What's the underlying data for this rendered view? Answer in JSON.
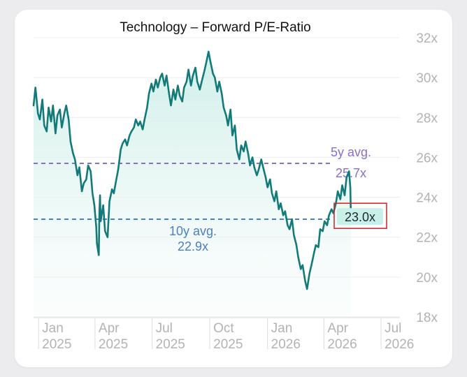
{
  "chart_data": {
    "type": "line",
    "title": "Technology – Forward P/E-Ratio",
    "xlabel": "",
    "ylabel": "",
    "ylim": [
      18,
      32
    ],
    "y_ticks": [
      "32x",
      "30x",
      "28x",
      "26x",
      "24x",
      "22x",
      "20x",
      "18x"
    ],
    "y_tick_values": [
      32,
      30,
      28,
      26,
      24,
      22,
      20,
      18
    ],
    "x_ticks": [
      {
        "month": "Jan",
        "year": "2025"
      },
      {
        "month": "Apr",
        "year": "2025"
      },
      {
        "month": "Jul",
        "year": "2025"
      },
      {
        "month": "Oct",
        "year": "2025"
      },
      {
        "month": "Jan",
        "year": "2026"
      },
      {
        "month": "Apr",
        "year": "2026"
      },
      {
        "month": "Jul",
        "year": "2026"
      }
    ],
    "x_tick_dates": [
      "2025-01-01",
      "2025-04-01",
      "2025-07-01",
      "2025-10-01",
      "2026-01-01",
      "2026-04-01",
      "2026-07-01"
    ],
    "xlim": [
      "2024-12-24",
      "2026-07-31"
    ],
    "grid": true,
    "colors": {
      "line": "#137a7a",
      "fill": "#d8f3ee",
      "avg5": "#8a6fc8",
      "avg10": "#4a7fc4",
      "last_box_border": "#cc2222",
      "last_box_fill": "#c9f0e8"
    },
    "reference_lines": [
      {
        "name": "5y avg.",
        "value": 25.7,
        "label_line1": "5y avg.",
        "label_line2": "25.7x"
      },
      {
        "name": "10y avg.",
        "value": 22.9,
        "label_line1": "10y avg.",
        "label_line2": "22.9x"
      }
    ],
    "last_value": {
      "value": 23.0,
      "label": "23.0x"
    },
    "series": [
      {
        "points": [
          [
            "2024-12-24",
            28.6
          ],
          [
            "2024-12-27",
            29.5
          ],
          [
            "2024-12-31",
            28.2
          ],
          [
            "2025-01-03",
            27.9
          ],
          [
            "2025-01-07",
            28.9
          ],
          [
            "2025-01-10",
            27.6
          ],
          [
            "2025-01-14",
            27.3
          ],
          [
            "2025-01-17",
            28.5
          ],
          [
            "2025-01-21",
            27.8
          ],
          [
            "2025-01-24",
            28.6
          ],
          [
            "2025-01-28",
            27.2
          ],
          [
            "2025-01-31",
            28.1
          ],
          [
            "2025-02-04",
            28.4
          ],
          [
            "2025-02-07",
            27.5
          ],
          [
            "2025-02-11",
            28.2
          ],
          [
            "2025-02-14",
            28.6
          ],
          [
            "2025-02-18",
            27.9
          ],
          [
            "2025-02-21",
            26.8
          ],
          [
            "2025-02-25",
            26.2
          ],
          [
            "2025-02-28",
            25.9
          ],
          [
            "2025-03-04",
            25.1
          ],
          [
            "2025-03-07",
            25.5
          ],
          [
            "2025-03-11",
            24.3
          ],
          [
            "2025-03-14",
            24.7
          ],
          [
            "2025-03-18",
            24.9
          ],
          [
            "2025-03-21",
            25.6
          ],
          [
            "2025-03-25",
            25.3
          ],
          [
            "2025-03-28",
            24.2
          ],
          [
            "2025-03-31",
            23.6
          ],
          [
            "2025-04-03",
            22.5
          ],
          [
            "2025-04-04",
            21.7
          ],
          [
            "2025-04-07",
            21.1
          ],
          [
            "2025-04-08",
            23.3
          ],
          [
            "2025-04-09",
            24.1
          ],
          [
            "2025-04-10",
            22.8
          ],
          [
            "2025-04-14",
            23.6
          ],
          [
            "2025-04-17",
            22.3
          ],
          [
            "2025-04-21",
            22.0
          ],
          [
            "2025-04-24",
            23.8
          ],
          [
            "2025-04-28",
            24.4
          ],
          [
            "2025-05-01",
            24.2
          ],
          [
            "2025-05-05",
            24.9
          ],
          [
            "2025-05-08",
            25.4
          ],
          [
            "2025-05-12",
            26.4
          ],
          [
            "2025-05-15",
            26.7
          ],
          [
            "2025-05-19",
            26.9
          ],
          [
            "2025-05-22",
            26.6
          ],
          [
            "2025-05-26",
            27.1
          ],
          [
            "2025-05-29",
            27.3
          ],
          [
            "2025-06-02",
            27.5
          ],
          [
            "2025-06-05",
            27.9
          ],
          [
            "2025-06-09",
            27.6
          ],
          [
            "2025-06-12",
            27.8
          ],
          [
            "2025-06-16",
            27.4
          ],
          [
            "2025-06-19",
            27.9
          ],
          [
            "2025-06-23",
            28.5
          ],
          [
            "2025-06-26",
            29.2
          ],
          [
            "2025-06-30",
            29.7
          ],
          [
            "2025-07-03",
            29.3
          ],
          [
            "2025-07-07",
            29.9
          ],
          [
            "2025-07-10",
            29.5
          ],
          [
            "2025-07-14",
            30.0
          ],
          [
            "2025-07-17",
            30.2
          ],
          [
            "2025-07-21",
            29.6
          ],
          [
            "2025-07-24",
            30.1
          ],
          [
            "2025-07-28",
            29.2
          ],
          [
            "2025-07-31",
            28.6
          ],
          [
            "2025-08-04",
            29.4
          ],
          [
            "2025-08-07",
            28.9
          ],
          [
            "2025-08-11",
            29.6
          ],
          [
            "2025-08-14",
            29.1
          ],
          [
            "2025-08-18",
            28.8
          ],
          [
            "2025-08-21",
            29.5
          ],
          [
            "2025-08-25",
            29.8
          ],
          [
            "2025-08-28",
            30.4
          ],
          [
            "2025-09-01",
            29.6
          ],
          [
            "2025-09-04",
            30.1
          ],
          [
            "2025-09-08",
            30.5
          ],
          [
            "2025-09-11",
            29.8
          ],
          [
            "2025-09-15",
            29.4
          ],
          [
            "2025-09-18",
            29.8
          ],
          [
            "2025-09-22",
            30.3
          ],
          [
            "2025-09-25",
            30.7
          ],
          [
            "2025-09-29",
            31.3
          ],
          [
            "2025-10-02",
            30.8
          ],
          [
            "2025-10-06",
            30.2
          ],
          [
            "2025-10-09",
            30.0
          ],
          [
            "2025-10-13",
            29.3
          ],
          [
            "2025-10-16",
            29.8
          ],
          [
            "2025-10-20",
            29.2
          ],
          [
            "2025-10-23",
            28.5
          ],
          [
            "2025-10-27",
            28.1
          ],
          [
            "2025-10-30",
            27.6
          ],
          [
            "2025-11-03",
            28.4
          ],
          [
            "2025-11-06",
            27.1
          ],
          [
            "2025-11-10",
            27.6
          ],
          [
            "2025-11-13",
            26.4
          ],
          [
            "2025-11-17",
            25.9
          ],
          [
            "2025-11-20",
            26.6
          ],
          [
            "2025-11-24",
            26.3
          ],
          [
            "2025-11-27",
            26.8
          ],
          [
            "2025-12-01",
            26.2
          ],
          [
            "2025-12-04",
            25.6
          ],
          [
            "2025-12-08",
            26.0
          ],
          [
            "2025-12-11",
            25.5
          ],
          [
            "2025-12-15",
            25.1
          ],
          [
            "2025-12-18",
            25.4
          ],
          [
            "2025-12-22",
            25.9
          ],
          [
            "2025-12-25",
            25.5
          ],
          [
            "2025-12-29",
            25.0
          ],
          [
            "2026-01-01",
            24.5
          ],
          [
            "2026-01-05",
            24.9
          ],
          [
            "2026-01-08",
            24.2
          ],
          [
            "2026-01-12",
            23.8
          ],
          [
            "2026-01-15",
            24.3
          ],
          [
            "2026-01-19",
            23.4
          ],
          [
            "2026-01-22",
            23.7
          ],
          [
            "2026-01-26",
            23.1
          ],
          [
            "2026-01-29",
            23.3
          ],
          [
            "2026-02-02",
            22.6
          ],
          [
            "2026-02-05",
            22.4
          ],
          [
            "2026-02-09",
            22.9
          ],
          [
            "2026-02-12",
            22.1
          ],
          [
            "2026-02-16",
            21.6
          ],
          [
            "2026-02-19",
            21.0
          ],
          [
            "2026-02-23",
            20.4
          ],
          [
            "2026-02-26",
            20.6
          ],
          [
            "2026-03-02",
            19.8
          ],
          [
            "2026-03-05",
            19.4
          ],
          [
            "2026-03-09",
            20.2
          ],
          [
            "2026-03-12",
            20.6
          ],
          [
            "2026-03-16",
            21.2
          ],
          [
            "2026-03-19",
            21.6
          ],
          [
            "2026-03-23",
            21.5
          ],
          [
            "2026-03-26",
            22.4
          ],
          [
            "2026-03-30",
            22.3
          ],
          [
            "2026-04-02",
            22.8
          ],
          [
            "2026-04-06",
            22.6
          ],
          [
            "2026-04-09",
            23.1
          ],
          [
            "2026-04-13",
            23.4
          ],
          [
            "2026-04-16",
            23.2
          ],
          [
            "2026-04-20",
            23.7
          ],
          [
            "2026-04-23",
            24.3
          ],
          [
            "2026-04-27",
            23.9
          ],
          [
            "2026-04-30",
            24.6
          ],
          [
            "2026-05-04",
            24.1
          ],
          [
            "2026-05-07",
            25.0
          ],
          [
            "2026-05-11",
            25.3
          ],
          [
            "2026-05-13",
            24.5
          ],
          [
            "2026-05-14",
            23.0
          ]
        ]
      }
    ]
  }
}
